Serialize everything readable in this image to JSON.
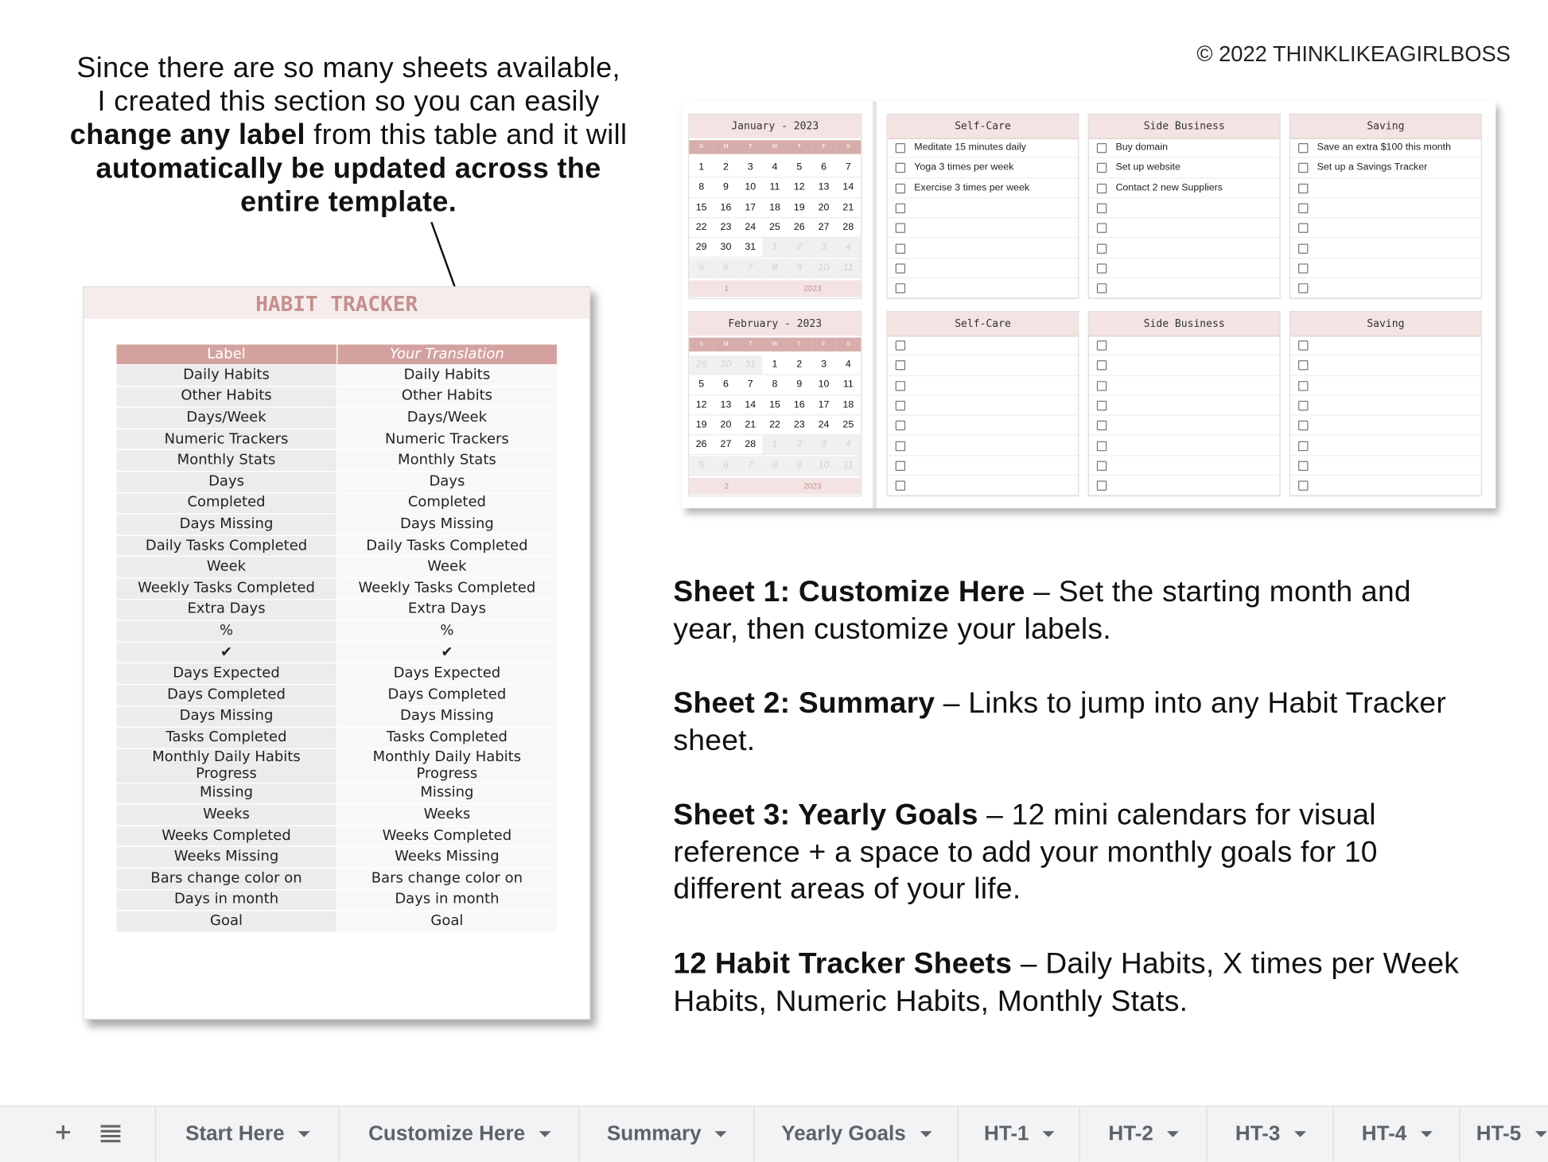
{
  "intro": [
    "Since there are so many sheets available, I created this section so you can easily ",
    "change any label",
    " from this table and it will ",
    "automatically be updated across the entire template."
  ],
  "copyright": "©  2022 THINKLIKEAGIRLBOSS",
  "habit_tracker": {
    "title": "HABIT TRACKER",
    "headers": [
      "Label",
      "Your Translation"
    ],
    "rows": [
      [
        "Daily Habits",
        "Daily Habits"
      ],
      [
        "Other Habits",
        "Other Habits"
      ],
      [
        "Days/Week",
        "Days/Week"
      ],
      [
        "Numeric Trackers",
        "Numeric Trackers"
      ],
      [
        "Monthly Stats",
        "Monthly Stats"
      ],
      [
        "Days",
        "Days"
      ],
      [
        "Completed",
        "Completed"
      ],
      [
        "Days Missing",
        "Days Missing"
      ],
      [
        "Daily Tasks Completed",
        "Daily Tasks Completed"
      ],
      [
        "Week",
        "Week"
      ],
      [
        "Weekly Tasks Completed",
        "Weekly Tasks Completed"
      ],
      [
        "Extra Days",
        "Extra Days"
      ],
      [
        "%",
        "%"
      ],
      [
        "✔",
        "✔"
      ],
      [
        "Days Expected",
        "Days Expected"
      ],
      [
        "Days Completed",
        "Days Completed"
      ],
      [
        "Days Missing",
        "Days Missing"
      ],
      [
        "Tasks Completed",
        "Tasks Completed"
      ],
      [
        "Monthly Daily Habits Progress",
        "Monthly Daily Habits Progress"
      ],
      [
        "Missing",
        "Missing"
      ],
      [
        "Weeks",
        "Weeks"
      ],
      [
        "Weeks Completed",
        "Weeks Completed"
      ],
      [
        "Weeks Missing",
        "Weeks Missing"
      ],
      [
        "Bars change color on",
        "Bars change color on"
      ],
      [
        "Days in month",
        "Days in month"
      ],
      [
        "Goal",
        "Goal"
      ]
    ]
  },
  "calendars": [
    {
      "title": "January - 2023",
      "weekdays": [
        "S",
        "M",
        "T",
        "W",
        "T",
        "F",
        "S"
      ],
      "weeks": [
        [
          1,
          2,
          3,
          4,
          5,
          6,
          7
        ],
        [
          8,
          9,
          10,
          11,
          12,
          13,
          14
        ],
        [
          15,
          16,
          17,
          18,
          19,
          20,
          21
        ],
        [
          22,
          23,
          24,
          25,
          26,
          27,
          28
        ],
        [
          29,
          30,
          31,
          1,
          2,
          3,
          4
        ],
        [
          5,
          6,
          7,
          8,
          9,
          10,
          11
        ]
      ],
      "month": 1,
      "year": 2023
    },
    {
      "title": "February - 2023",
      "weekdays": [
        "S",
        "M",
        "T",
        "W",
        "T",
        "F",
        "S"
      ],
      "weeks": [
        [
          29,
          30,
          31,
          1,
          2,
          3,
          4
        ],
        [
          5,
          6,
          7,
          8,
          9,
          10,
          11
        ],
        [
          12,
          13,
          14,
          15,
          16,
          17,
          18
        ],
        [
          19,
          20,
          21,
          22,
          23,
          24,
          25
        ],
        [
          26,
          27,
          28,
          1,
          2,
          3,
          4
        ],
        [
          5,
          6,
          7,
          8,
          9,
          10,
          11
        ]
      ],
      "month": 2,
      "year": 2023
    }
  ],
  "goals": [
    {
      "title": "Self-Care",
      "items": [
        "Meditate 15 minutes daily",
        "Yoga 3 times per week",
        "Exercise 3 times per week"
      ]
    },
    {
      "title": "Side Business",
      "items": [
        "Buy domain",
        "Set up website",
        "Contact 2 new Suppliers"
      ]
    },
    {
      "title": "Saving",
      "items": [
        "Save an extra $100 this month",
        "Set up a Savings Tracker"
      ]
    },
    {
      "title": "Self-Care",
      "items": []
    },
    {
      "title": "Side Business",
      "items": []
    },
    {
      "title": "Saving",
      "items": []
    }
  ],
  "sheets": [
    {
      "name": "Sheet 1: Customize Here",
      "description": "– Set the starting month and year, then customize your labels."
    },
    {
      "name": "Sheet 2: Summary",
      "description": "– Links to jump into any Habit Tracker sheet."
    },
    {
      "name": "Sheet 3: Yearly Goals",
      "description": "– 12 mini calendars for visual reference + a space to add your monthly goals for 10 different areas of your life."
    },
    {
      "name": "12 Habit Tracker Sheets",
      "description": "– Daily Habits, X times per Week Habits, Numeric Habits, Monthly Stats."
    }
  ],
  "tabs": [
    "Start Here",
    "Customize Here",
    "Summary",
    "Yearly Goals",
    "HT-1",
    "HT-2",
    "HT-3",
    "HT-4",
    "HT-5"
  ]
}
